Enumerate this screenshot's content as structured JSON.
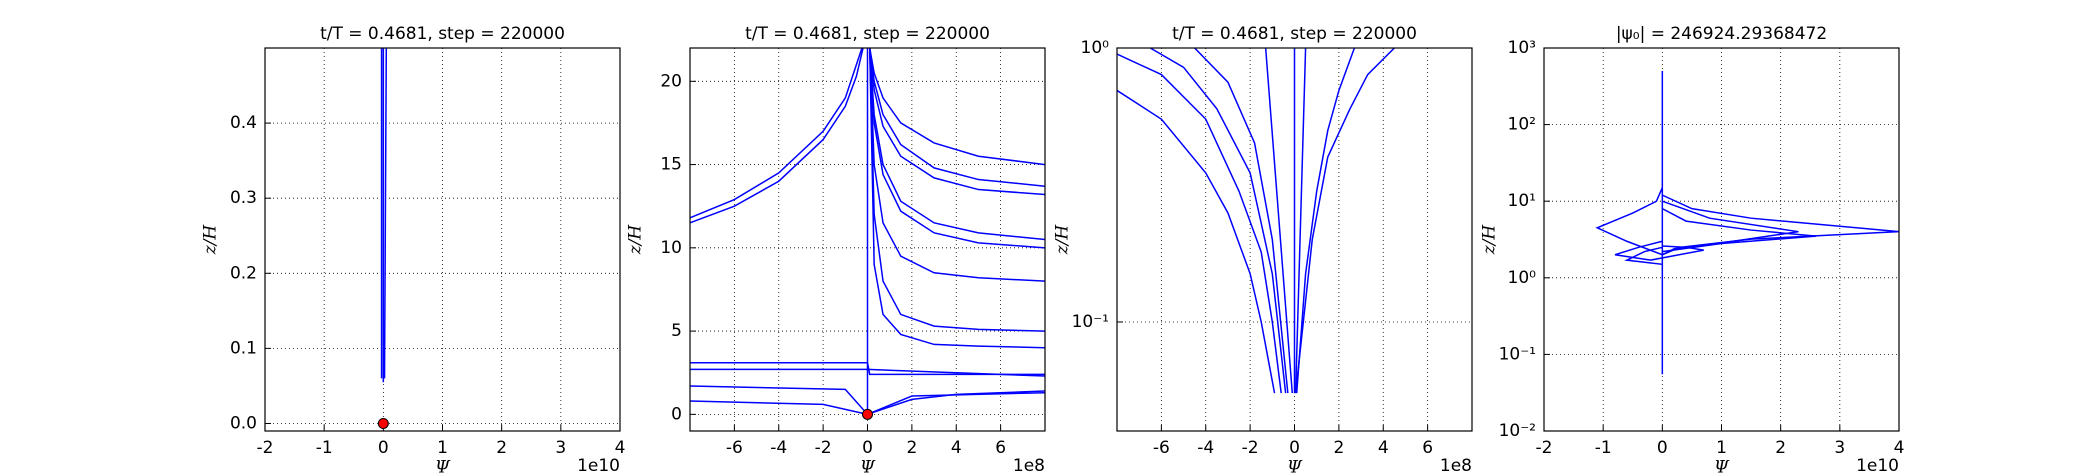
{
  "chart_data": [
    {
      "type": "line",
      "title": "t/T = 0.4681, step = 220000",
      "xlabel": "Ψ",
      "ylabel": "z/H",
      "x_offset_label": "1e10",
      "xlim": [
        -2,
        4
      ],
      "ylim": [
        -0.01,
        0.5
      ],
      "xticks": [
        -2,
        -1,
        0,
        1,
        2,
        3,
        4
      ],
      "yticks": [
        {
          "value": 0,
          "label": "0.0"
        },
        0.1,
        0.2,
        0.3,
        0.4
      ],
      "grid": true,
      "log_y": false,
      "line_color": "#0000ff",
      "marker_color": "#ff0000",
      "series": [
        {
          "x": [
            0,
            0
          ],
          "y": [
            0.055,
            0.5
          ]
        },
        {
          "x": [
            0.02,
            0.05
          ],
          "y": [
            0.06,
            0.5
          ]
        },
        {
          "x": [
            -0.03,
            -0.03
          ],
          "y": [
            0.06,
            0.5
          ]
        }
      ],
      "markers": {
        "x": [
          0
        ],
        "y": [
          0
        ]
      }
    },
    {
      "type": "line",
      "title": "t/T = 0.4681, step = 220000",
      "xlabel": "Ψ",
      "ylabel": "z/H",
      "x_offset_label": "1e8",
      "xlim": [
        -8,
        8
      ],
      "ylim": [
        -1,
        22
      ],
      "xticks": [
        -6,
        -4,
        -2,
        0,
        2,
        4,
        6
      ],
      "yticks": [
        0,
        5,
        10,
        15,
        20
      ],
      "grid": true,
      "log_y": false,
      "line_color": "#0000ff",
      "marker_color": "#ff0000",
      "series": [
        {
          "x": [
            -8,
            -6,
            -4,
            -2,
            -1,
            -0.5,
            -0.2
          ],
          "y": [
            11.5,
            12.5,
            14,
            16.5,
            18.5,
            20.3,
            22
          ]
        },
        {
          "x": [
            -8,
            -6,
            -4,
            -2,
            -1,
            -0.5,
            -0.25
          ],
          "y": [
            11.8,
            12.9,
            14.5,
            17,
            19,
            21,
            22
          ]
        },
        {
          "x": [
            0.1,
            0.3,
            0.7,
            1.5,
            3,
            5,
            8
          ],
          "y": [
            22,
            20.5,
            19,
            17.5,
            16.3,
            15.5,
            15
          ]
        },
        {
          "x": [
            0.1,
            0.3,
            0.7,
            1.5,
            3,
            5,
            8
          ],
          "y": [
            22,
            20,
            18,
            16.2,
            14.8,
            14.1,
            13.7
          ]
        },
        {
          "x": [
            0.1,
            0.3,
            0.7,
            1.5,
            3,
            5,
            8
          ],
          "y": [
            22,
            19.5,
            17.3,
            15.5,
            14.2,
            13.5,
            13.2
          ]
        },
        {
          "x": [
            0.1,
            0.3,
            0.7,
            1.5,
            3,
            5,
            8
          ],
          "y": [
            22,
            18,
            15,
            12.8,
            11.5,
            10.9,
            10.5
          ]
        },
        {
          "x": [
            0.1,
            0.3,
            0.7,
            1.5,
            3,
            5,
            8
          ],
          "y": [
            22,
            17.5,
            14.4,
            12.2,
            10.9,
            10.3,
            10
          ]
        },
        {
          "x": [
            0.1,
            0.3,
            0.7,
            1.5,
            3,
            5,
            8
          ],
          "y": [
            22,
            15,
            11.5,
            9.5,
            8.5,
            8.2,
            8
          ]
        },
        {
          "x": [
            0.1,
            0.3,
            0.7,
            1.5,
            3,
            5,
            8
          ],
          "y": [
            22,
            12,
            8,
            6,
            5.3,
            5.1,
            5
          ]
        },
        {
          "x": [
            0.1,
            0.3,
            0.7,
            1.5,
            3,
            5,
            8
          ],
          "y": [
            22,
            9,
            6,
            4.8,
            4.2,
            4.1,
            4
          ]
        },
        {
          "x": [
            -8,
            0,
            0.1,
            8
          ],
          "y": [
            3.1,
            3.1,
            2.4,
            2.4
          ]
        },
        {
          "x": [
            -8,
            0,
            8
          ],
          "y": [
            2.7,
            2.7,
            2.3
          ]
        },
        {
          "x": [
            -8,
            -1,
            0,
            2,
            8
          ],
          "y": [
            1.7,
            1.5,
            0,
            1.1,
            1.3
          ]
        },
        {
          "x": [
            -8,
            -2,
            0
          ],
          "y": [
            0.8,
            0.6,
            0
          ]
        },
        {
          "x": [
            0,
            2,
            4,
            8
          ],
          "y": [
            0,
            0.9,
            1.2,
            1.4
          ]
        },
        {
          "x": [
            0,
            0
          ],
          "y": [
            0,
            22
          ]
        }
      ],
      "markers": {
        "x": [
          0
        ],
        "y": [
          0
        ]
      }
    },
    {
      "type": "line",
      "title": "t/T = 0.4681, step = 220000",
      "xlabel": "Ψ",
      "ylabel": "z/H",
      "x_offset_label": "1e8",
      "xlim": [
        -8,
        8
      ],
      "ylim": [
        0.04,
        1
      ],
      "xticks": [
        -6,
        -4,
        -2,
        0,
        2,
        4,
        6
      ],
      "yticks": [
        {
          "value": 0.1,
          "label": "10⁻¹"
        },
        {
          "value": 1,
          "label": "10⁰"
        }
      ],
      "grid": true,
      "log_y": true,
      "line_color": "#0000ff",
      "series": [
        {
          "x": [
            -8,
            -6,
            -4,
            -3,
            -2,
            -1.5,
            -0.9
          ],
          "y": [
            0.7,
            0.55,
            0.35,
            0.25,
            0.15,
            0.1,
            0.055
          ]
        },
        {
          "x": [
            -8,
            -6,
            -4,
            -2.5,
            -1.5,
            -1,
            -0.6
          ],
          "y": [
            0.95,
            0.8,
            0.55,
            0.3,
            0.18,
            0.1,
            0.055
          ]
        },
        {
          "x": [
            -6.5,
            -5,
            -3.5,
            -2,
            -1,
            -0.4
          ],
          "y": [
            1,
            0.85,
            0.6,
            0.35,
            0.15,
            0.055
          ]
        },
        {
          "x": [
            -4.5,
            -3,
            -1.8,
            -1,
            -0.3
          ],
          "y": [
            1,
            0.75,
            0.45,
            0.2,
            0.055
          ]
        },
        {
          "x": [
            0.1,
            0.5,
            1,
            1.5,
            2,
            2.7
          ],
          "y": [
            0.055,
            0.15,
            0.3,
            0.5,
            0.7,
            1
          ]
        },
        {
          "x": [
            0.05,
            0.8,
            1.5,
            2.5,
            3.3,
            4.5
          ],
          "y": [
            0.055,
            0.2,
            0.4,
            0.6,
            0.8,
            1
          ]
        },
        {
          "x": [
            -1.3,
            -0.1
          ],
          "y": [
            1,
            0.055
          ]
        },
        {
          "x": [
            0.5,
            0.05
          ],
          "y": [
            1,
            0.055
          ]
        },
        {
          "x": [
            0,
            0
          ],
          "y": [
            0.055,
            1
          ]
        }
      ]
    },
    {
      "type": "line",
      "title": "|ψ₀| = 246924.29368472",
      "xlabel": "Ψ",
      "ylabel": "z/H",
      "x_offset_label": "1e10",
      "xlim": [
        -2,
        4
      ],
      "ylim": [
        0.01,
        1000
      ],
      "xticks": [
        -2,
        -1,
        0,
        1,
        2,
        3,
        4
      ],
      "yticks": [
        {
          "value": 0.01,
          "label": "10⁻²"
        },
        {
          "value": 0.1,
          "label": "10⁻¹"
        },
        {
          "value": 1,
          "label": "10⁰"
        },
        {
          "value": 10,
          "label": "10¹"
        },
        {
          "value": 100,
          "label": "10²"
        },
        {
          "value": 1000,
          "label": "10³"
        }
      ],
      "grid": true,
      "log_y": true,
      "line_color": "#0000ff",
      "series": [
        {
          "x": [
            0,
            0
          ],
          "y": [
            0.055,
            500
          ]
        },
        {
          "x": [
            0,
            -0.1,
            -0.5,
            -1.1,
            -0.6,
            0
          ],
          "y": [
            15,
            10,
            7,
            4.5,
            3,
            2
          ]
        },
        {
          "x": [
            0,
            0.5,
            1.5,
            4,
            1.5,
            0.3,
            0
          ],
          "y": [
            12,
            8,
            6,
            4,
            3.2,
            2.5,
            2
          ]
        },
        {
          "x": [
            0,
            0.8,
            2.3,
            1.2,
            0.2,
            0
          ],
          "y": [
            10,
            6,
            4,
            3,
            2.4,
            2
          ]
        },
        {
          "x": [
            0,
            0.4,
            1.5,
            2.6,
            1,
            0
          ],
          "y": [
            8,
            5.5,
            4.2,
            3.5,
            2.8,
            2.2
          ]
        },
        {
          "x": [
            0,
            -0.4,
            -0.8,
            -0.2,
            0.7,
            0.4,
            0
          ],
          "y": [
            3,
            2.5,
            2,
            1.7,
            2.3,
            2.5,
            2.6
          ]
        },
        {
          "x": [
            0,
            -0.6,
            -0.3,
            0
          ],
          "y": [
            1.5,
            1.7,
            2.2,
            2.5
          ]
        }
      ]
    }
  ]
}
